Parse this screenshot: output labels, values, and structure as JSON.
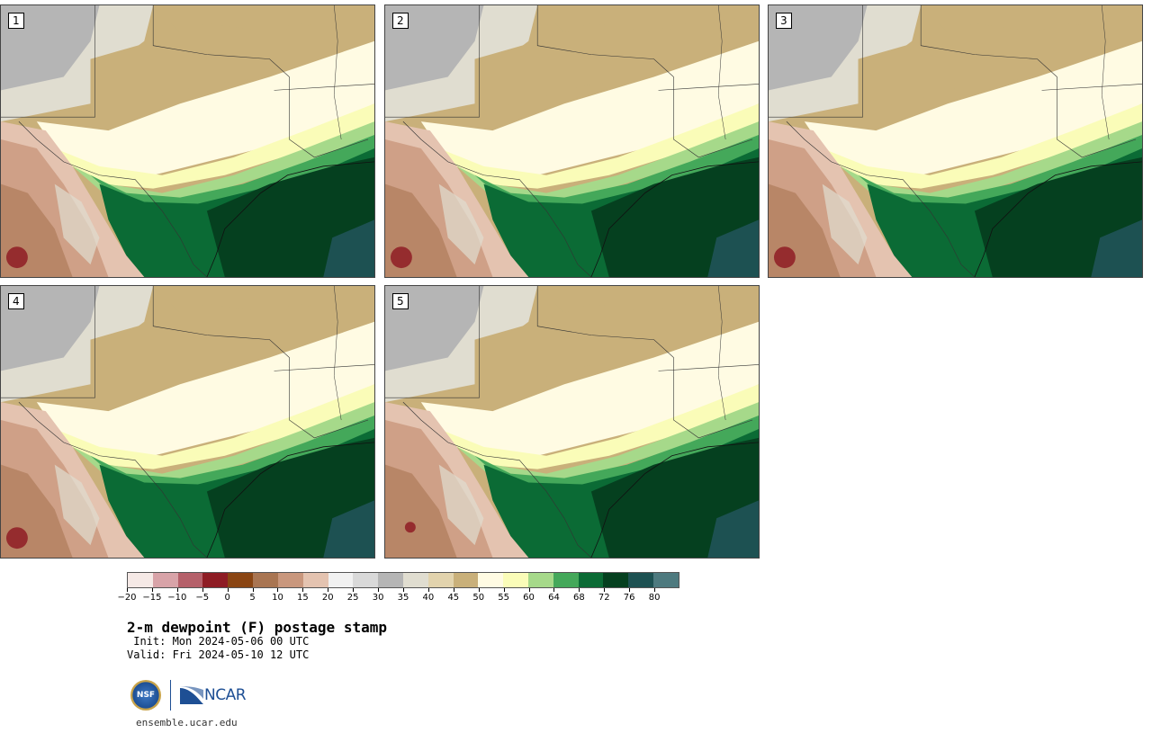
{
  "title": "2-m dewpoint (F) postage stamp",
  "init": " Init: Mon 2024-05-06 00 UTC",
  "valid": "Valid: Fri 2024-05-10 12 UTC",
  "site": "ensemble.ucar.edu",
  "logos": {
    "nsf": "NSF",
    "ncar": "NCAR"
  },
  "stamps": [
    "1",
    "2",
    "3",
    "4",
    "5"
  ],
  "colorbar": {
    "ticks": [
      "-20",
      "-15",
      "-10",
      "-5",
      "0",
      "5",
      "10",
      "15",
      "20",
      "25",
      "30",
      "35",
      "40",
      "45",
      "50",
      "55",
      "60",
      "64",
      "68",
      "72",
      "76",
      "80"
    ],
    "colors": [
      "#f5e9e6",
      "#d8a3a8",
      "#b5606a",
      "#8e1c24",
      "#8a4513",
      "#a97552",
      "#c9977d",
      "#e4c3b0",
      "#f1f1f1",
      "#d9d9d9",
      "#b5b5b5",
      "#e0ddd0",
      "#e2d3ad",
      "#c9b07a",
      "#fffbe3",
      "#fafcb8",
      "#a6d98a",
      "#44a85a",
      "#0b6b35",
      "#05401f",
      "#1d5152",
      "#4e7a7f"
    ]
  },
  "map_colors": {
    "gray": "#b5b5b5",
    "lightgray": "#e0ddd0",
    "tan_light": "#e2d3ad",
    "tan": "#c9b07a",
    "cream": "#fffbe3",
    "pale": "#fafcb8",
    "lightgreen": "#a6d98a",
    "green": "#44a85a",
    "darkgreen": "#0b6b35",
    "darkest": "#05401f",
    "ocean": "#1d5152",
    "brown_light": "#e4c3b0",
    "brown": "#c9977d",
    "brown_dark": "#a97552",
    "red": "#8e1c24"
  }
}
